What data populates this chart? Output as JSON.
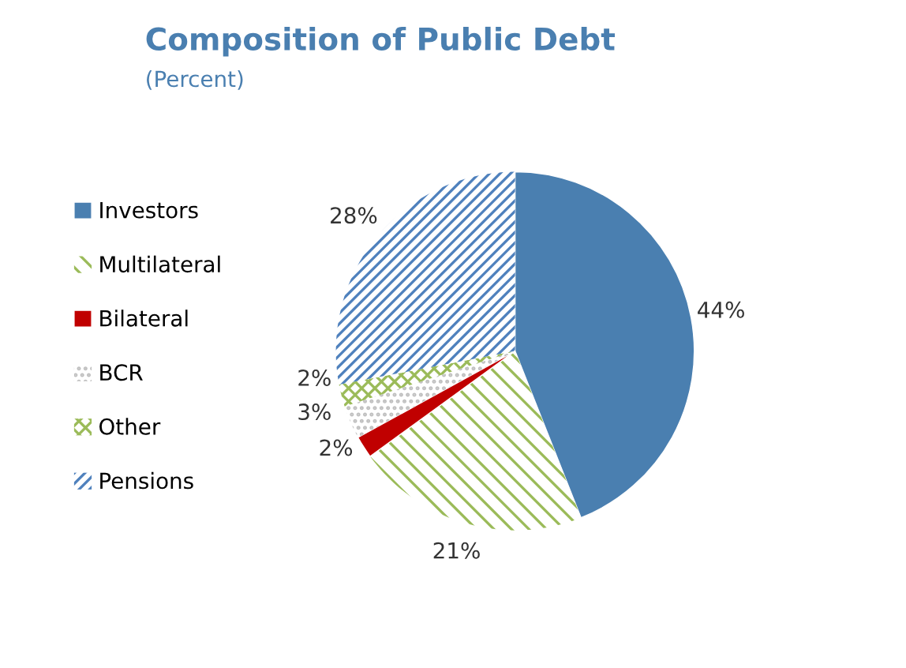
{
  "chart_data": {
    "type": "pie",
    "title": "Composition of Public Debt",
    "subtitle": "(Percent)",
    "categories": [
      "Investors",
      "Multilateral",
      "Bilateral",
      "BCR",
      "Other",
      "Pensions"
    ],
    "values": [
      44,
      21,
      2,
      3,
      2,
      28
    ],
    "colors": [
      "#4a7fb0",
      "#9bbb59",
      "#c00000",
      "#bfbfbf",
      "#9bbb59",
      "#4f81bd"
    ],
    "value_labels": [
      "44%",
      "21%",
      "2%",
      "3%",
      "2%",
      "28%"
    ],
    "legend": "left"
  }
}
